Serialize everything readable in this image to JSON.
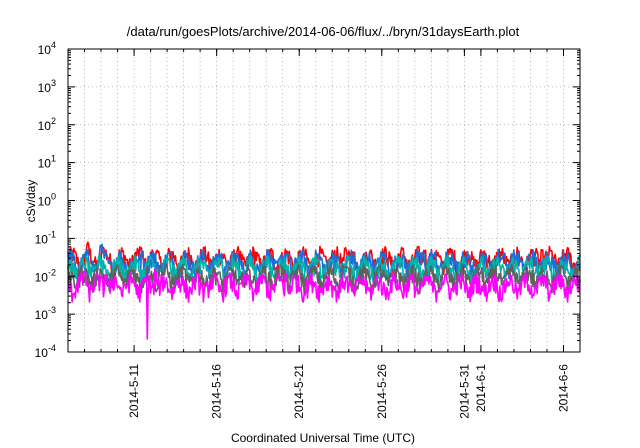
{
  "chart_data": {
    "type": "line",
    "title": "/data/run/goesPlots/archive/2014-06-06/flux/../bryn/31daysEarth.plot",
    "xlabel": "Coordinated Universal Time (UTC)",
    "ylabel": "cSv/day",
    "yscale": "log",
    "ylim": [
      0.0001,
      10000
    ],
    "xlim": [
      "2014-05-07",
      "2014-06-07"
    ],
    "grid": true,
    "y_ticks": [
      {
        "base": "10",
        "exp": "-4"
      },
      {
        "base": "10",
        "exp": "-3"
      },
      {
        "base": "10",
        "exp": "-2"
      },
      {
        "base": "10",
        "exp": "-1"
      },
      {
        "base": "10",
        "exp": "0"
      },
      {
        "base": "10",
        "exp": "1"
      },
      {
        "base": "10",
        "exp": "2"
      },
      {
        "base": "10",
        "exp": "3"
      },
      {
        "base": "10",
        "exp": "4"
      }
    ],
    "x_ticks": [
      "2014-5-11",
      "2014-5-16",
      "2014-5-21",
      "2014-5-26",
      "2014-5-31",
      "2014-6-1",
      "2014-6-6"
    ],
    "x_tick_days": [
      4,
      9,
      14,
      19,
      24,
      25,
      30
    ],
    "x_days": 31,
    "series": [
      {
        "color": "#ff0000",
        "baseline": 0.03,
        "spikes": [
          [
            1.2,
            0.08
          ],
          [
            2.1,
            0.07
          ],
          [
            4.4,
            0.06
          ],
          [
            10.3,
            0.05
          ],
          [
            16.8,
            0.06
          ],
          [
            21.6,
            0.05
          ],
          [
            28.7,
            0.05
          ]
        ]
      },
      {
        "color": "#1e6fd9",
        "baseline": 0.025,
        "spikes": [
          [
            2.0,
            0.07
          ],
          [
            4.5,
            0.05
          ],
          [
            13.3,
            0.04
          ],
          [
            21.5,
            0.045
          ],
          [
            26.4,
            0.045
          ]
        ]
      },
      {
        "color": "#00b3a8",
        "baseline": 0.017,
        "spikes": [
          [
            1.9,
            0.04
          ],
          [
            9.3,
            0.03
          ],
          [
            14.8,
            0.03
          ]
        ]
      },
      {
        "color": "#606060",
        "baseline": 0.01,
        "spikes": [
          [
            5.6,
            0.02
          ],
          [
            16.7,
            0.02
          ]
        ]
      },
      {
        "color": "#ff00ff",
        "baseline": 0.006,
        "spikes": [
          [
            1.0,
            0.015
          ],
          [
            2.3,
            0.012
          ],
          [
            5.3,
            0.016
          ],
          [
            13.2,
            0.013
          ]
        ],
        "dips": [
          [
            4.8,
            0.00022
          ]
        ]
      }
    ]
  }
}
